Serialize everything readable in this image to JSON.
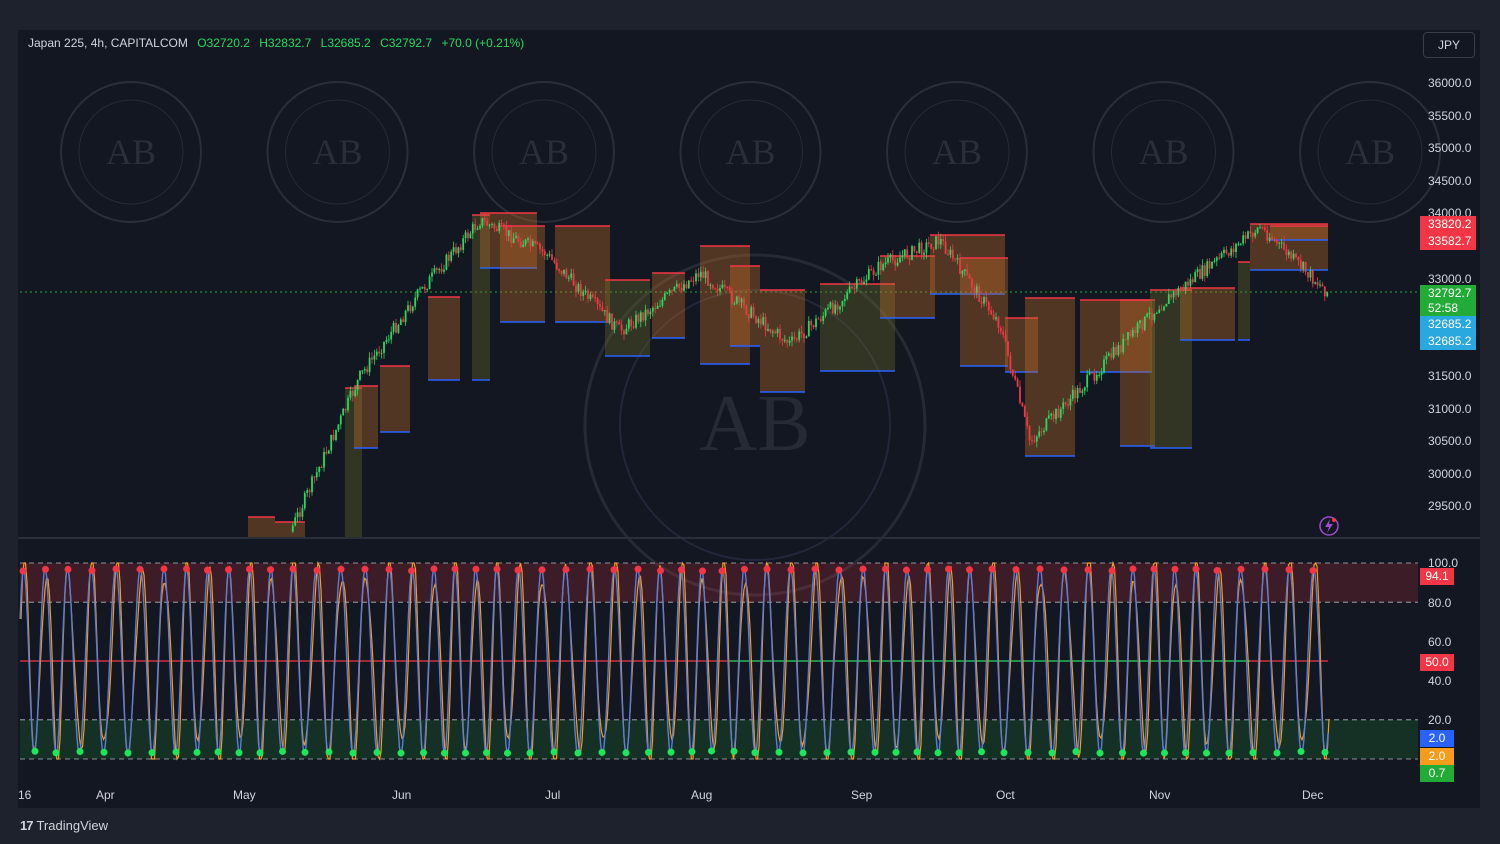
{
  "legend": {
    "symbol": "Japan 225, 4h, CAPITALCOM",
    "open": "O32720.2",
    "high": "H32832.7",
    "low": "L32685.2",
    "close": "C32792.7",
    "change": "+70.0 (+0.21%)"
  },
  "currency": "JPY",
  "price_axis": [
    "36000.0",
    "35500.0",
    "35000.0",
    "34500.0",
    "34000.0",
    "33000.0",
    "31500.0",
    "31000.0",
    "30500.0",
    "30000.0",
    "29500.0"
  ],
  "price_badges": {
    "red_upper": "33820.2",
    "red_lower": "33582.7",
    "last_price": "32792.7",
    "countdown": "52:58",
    "blue_upper": "32685.2",
    "blue_lower": "32685.2"
  },
  "osc_axis": [
    "100.0",
    "80.0",
    "60.0",
    "40.0",
    "20.0"
  ],
  "osc_badges": {
    "top": "94.1",
    "mid": "50.0",
    "blue": "2.0",
    "orange": "2.0",
    "green": "0.7"
  },
  "time_axis": [
    "16",
    "Apr",
    "May",
    "Jun",
    "Jul",
    "Aug",
    "Sep",
    "Oct",
    "Nov",
    "Dec"
  ],
  "brand": {
    "logo": "17",
    "name": "TradingView"
  },
  "watermark_text": "AB",
  "colors": {
    "bg": "#131722",
    "up": "#26d95f",
    "down": "#f23645",
    "blue": "#5b7bd8",
    "orange": "#f59c1a",
    "resistance": "#f23645",
    "support": "#2962ff",
    "badge_red": "#f23645",
    "badge_green": "#22ab37",
    "badge_blue": "#29a8e0"
  },
  "chart_data": {
    "type": "line",
    "price_trend": {
      "x": [
        "Mar-16",
        "Apr",
        "May",
        "May-20",
        "Jun",
        "Jun-15",
        "Jul",
        "Jul-20",
        "Aug",
        "Aug-15",
        "Sep",
        "Sep-15",
        "Oct",
        "Oct-10",
        "Nov",
        "Nov-15",
        "Dec"
      ],
      "y": [
        29000,
        28800,
        29100,
        31500,
        32800,
        33900,
        33400,
        32200,
        33100,
        32000,
        33200,
        33600,
        32300,
        30500,
        32600,
        33800,
        32792.7
      ]
    },
    "oscillator": {
      "ylim": [
        0,
        100
      ],
      "levels": [
        100,
        80,
        50,
        20,
        0
      ],
      "last": {
        "blue": 2.0,
        "orange": 2.0,
        "green": 0.7,
        "top": 94.1
      }
    }
  }
}
